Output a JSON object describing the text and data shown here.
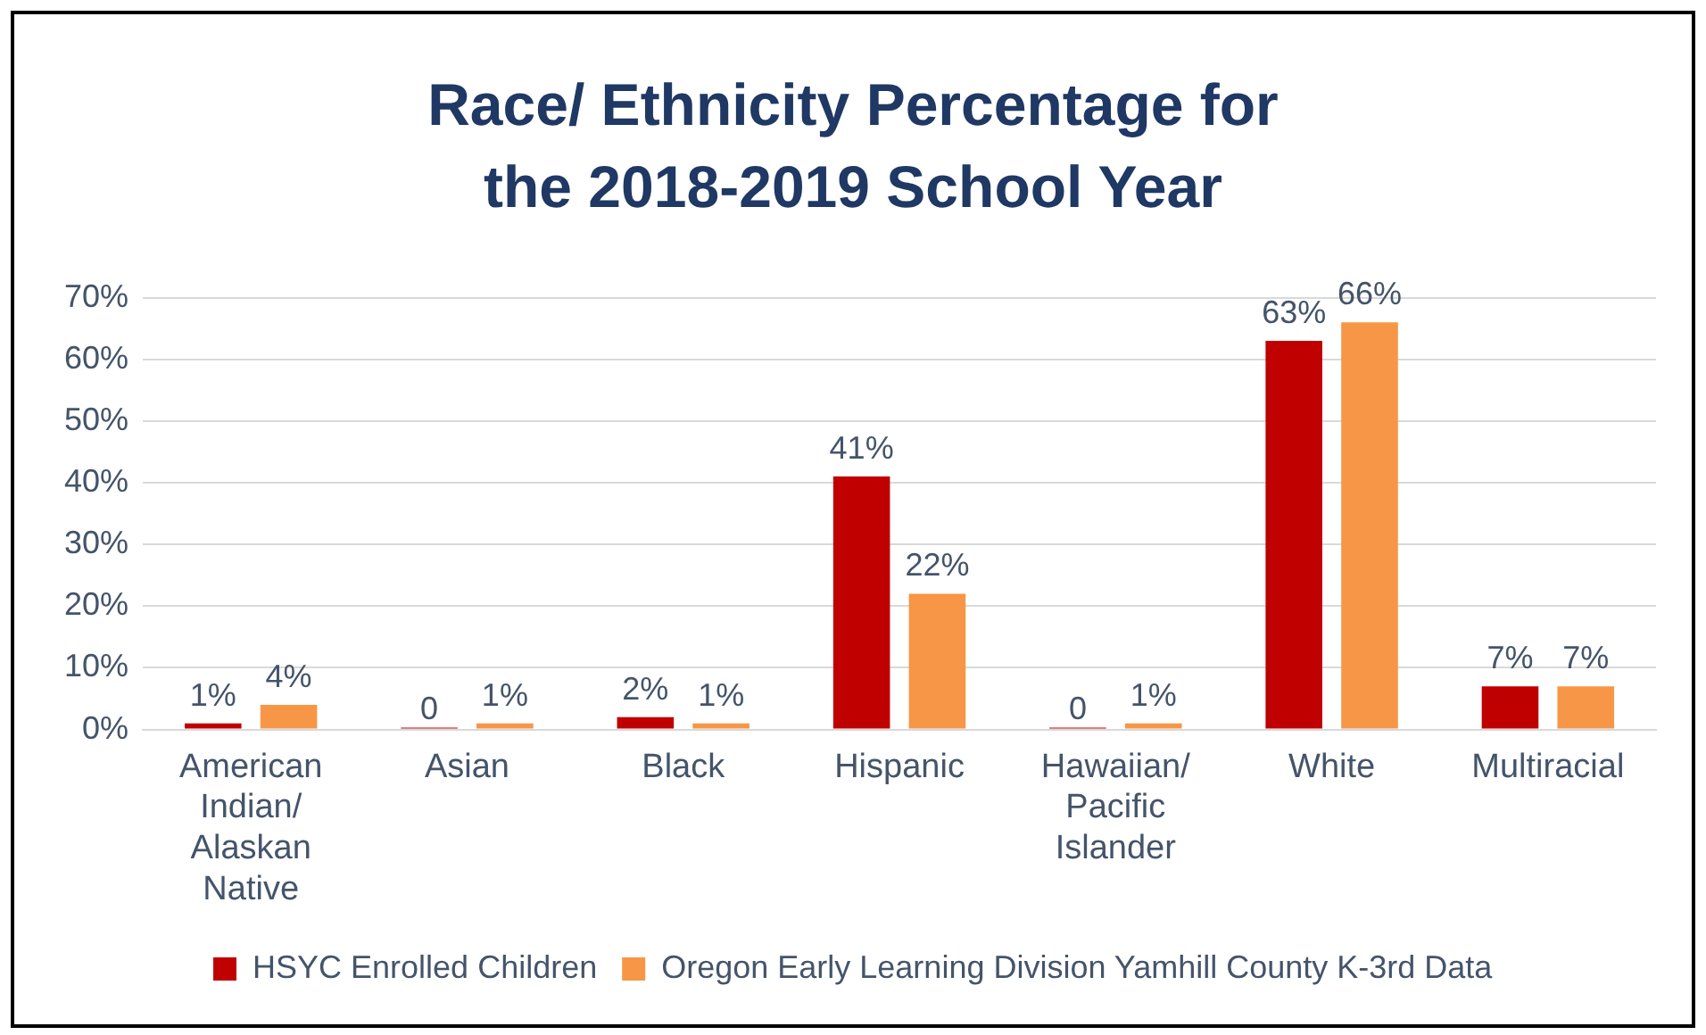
{
  "chart_data": {
    "type": "bar",
    "title": "Race/ Ethnicity Percentage for the 2018-2019 School Year",
    "categories": [
      "American Indian/ Alaskan Native",
      "Asian",
      "Black",
      "Hispanic",
      "Hawaiian/ Pacific Islander",
      "White",
      "Multiracial"
    ],
    "series": [
      {
        "name": "HSYC Enrolled Children",
        "color": "#c00000",
        "values": [
          1,
          0,
          2,
          41,
          0,
          63,
          7
        ],
        "value_labels": [
          "1%",
          "0",
          "2%",
          "41%",
          "0",
          "63%",
          "7%"
        ]
      },
      {
        "name": "Oregon Early Learning Division Yamhill County K-3rd Data",
        "color": "#f79646",
        "values": [
          4,
          1,
          1,
          22,
          1,
          66,
          7
        ],
        "value_labels": [
          "4%",
          "1%",
          "1%",
          "22%",
          "1%",
          "66%",
          "7%"
        ]
      }
    ],
    "ylim": [
      0,
      70
    ],
    "yticks": [
      {
        "value": 0,
        "label": "0%"
      },
      {
        "value": 10,
        "label": "10%"
      },
      {
        "value": 20,
        "label": "20%"
      },
      {
        "value": 30,
        "label": "30%"
      },
      {
        "value": 40,
        "label": "40%"
      },
      {
        "value": 50,
        "label": "50%"
      },
      {
        "value": 60,
        "label": "60%"
      },
      {
        "value": 70,
        "label": "70%"
      }
    ],
    "grid": "y",
    "legend": "bottom"
  }
}
